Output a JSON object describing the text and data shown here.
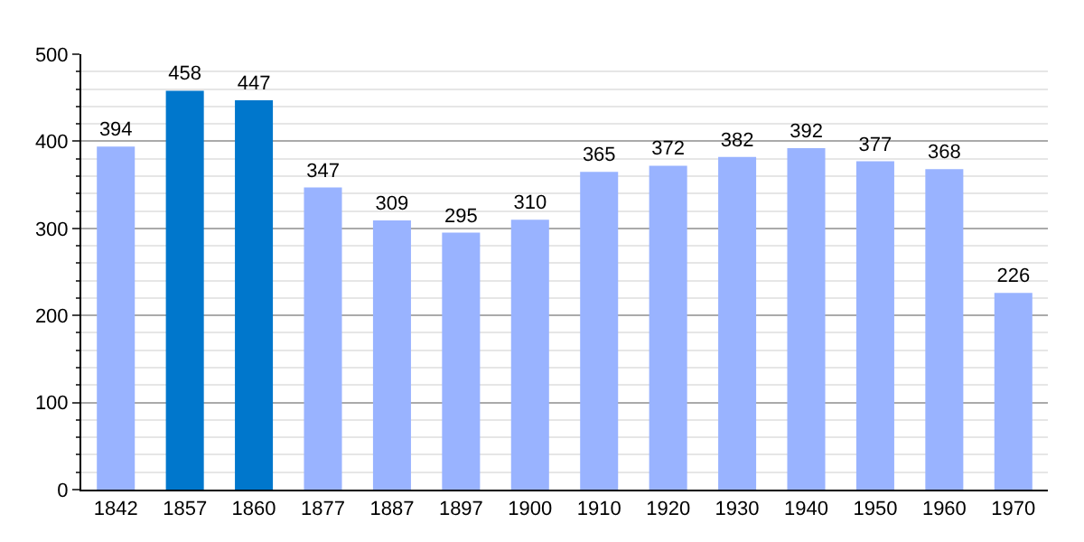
{
  "chart_data": {
    "type": "bar",
    "categories": [
      "1842",
      "1857",
      "1860",
      "1877",
      "1887",
      "1897",
      "1900",
      "1910",
      "1920",
      "1930",
      "1940",
      "1950",
      "1960",
      "1970"
    ],
    "values": [
      394,
      458,
      447,
      347,
      309,
      295,
      310,
      365,
      372,
      382,
      392,
      377,
      368,
      226
    ],
    "colors": [
      "#99b3ff",
      "#0077cc",
      "#0077cc",
      "#99b3ff",
      "#99b3ff",
      "#99b3ff",
      "#99b3ff",
      "#99b3ff",
      "#99b3ff",
      "#99b3ff",
      "#99b3ff",
      "#99b3ff",
      "#99b3ff",
      "#99b3ff"
    ],
    "ylim": [
      0,
      500
    ],
    "yticks": [
      0,
      100,
      200,
      300,
      400,
      500
    ],
    "grid": "y",
    "data_labels": true,
    "legend": false
  }
}
